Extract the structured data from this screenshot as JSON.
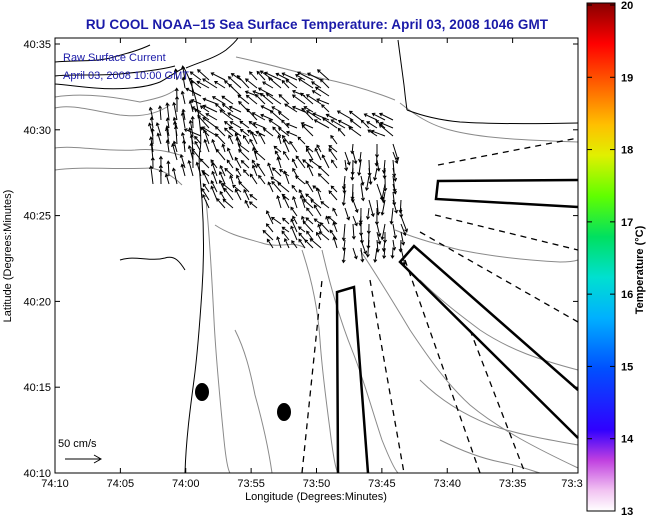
{
  "title": "RU COOL  NOAA–15  Sea Surface Temperature:  April 03, 2008 1046 GMT",
  "current_label": "Raw Surface Current",
  "current_time": "April 03, 2008 10:00 GMT",
  "scale_label": "50 cm/s",
  "xaxis": {
    "label": "Longitude (Degrees:Minutes)",
    "ticks": [
      "74:10",
      "74:05",
      "74:00",
      "73:55",
      "73:50",
      "73:45",
      "73:40",
      "73:35",
      "73:3"
    ]
  },
  "yaxis": {
    "label": "Latitude (Degrees:Minutes)",
    "ticks": [
      "40:35",
      "40:30",
      "40:25",
      "40:20",
      "40:15",
      "40:10"
    ]
  },
  "colorbar": {
    "label": "Temperature (°C)",
    "min": 13,
    "max": 20,
    "ticks": [
      "20",
      "19",
      "18",
      "17",
      "16",
      "15",
      "14",
      "13"
    ]
  },
  "colors": {
    "title_blue": "#1a1aa8",
    "land": "#ffffff",
    "coast": "#000000",
    "bathymetry": "#888888"
  }
}
